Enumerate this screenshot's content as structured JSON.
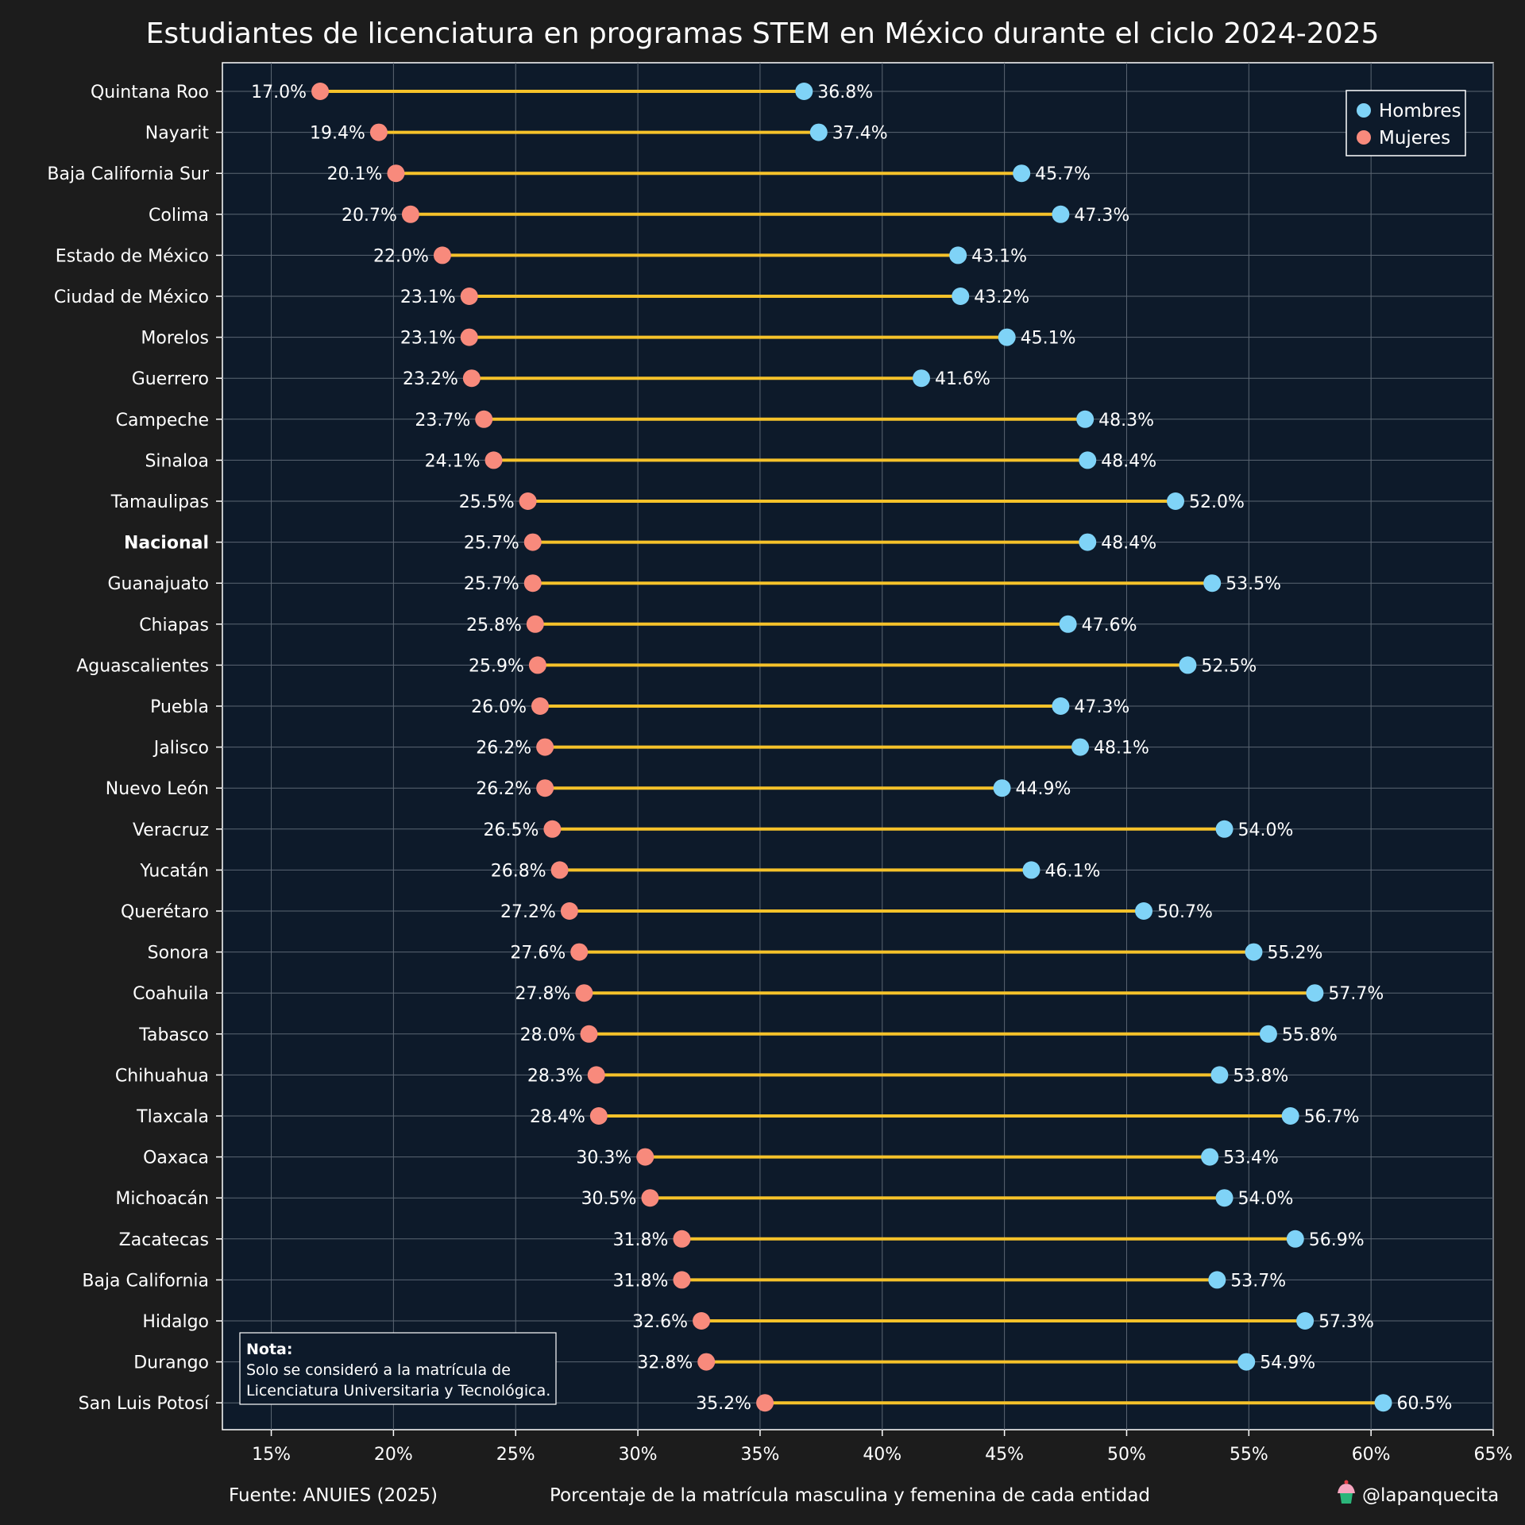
{
  "colors": {
    "background": "#1c1c1c",
    "plot_background": "#0d1a2a",
    "grid": "#5b6673",
    "connector": "#f5c22a",
    "hombres": "#7fd3f7",
    "mujeres": "#f88a7c"
  },
  "footer": {
    "source": "Fuente: ANUIES (2025)",
    "handle": "@lapanquecita",
    "handle_icon": "cupcake-icon"
  },
  "note": {
    "title": "Nota:",
    "line1": "Solo se consideró a la matrícula de",
    "line2": "Licenciatura Universitaria y Tecnológica."
  },
  "chart_data": {
    "type": "dumbbell",
    "title": "Estudiantes de licenciatura en programas STEM en México durante el ciclo 2024-2025",
    "xlabel": "Porcentaje de la matrícula masculina y femenina de cada entidad",
    "ylabel": "",
    "xlim": [
      13,
      65
    ],
    "x_ticks": [
      15,
      20,
      25,
      30,
      35,
      40,
      45,
      50,
      55,
      60,
      65
    ],
    "x_tick_labels": [
      "15%",
      "20%",
      "25%",
      "30%",
      "35%",
      "40%",
      "45%",
      "50%",
      "55%",
      "60%",
      "65%"
    ],
    "grid": true,
    "legend_position": "top-right",
    "categories": [
      "Quintana Roo",
      "Nayarit",
      "Baja California Sur",
      "Colima",
      "Estado de México",
      "Ciudad de México",
      "Morelos",
      "Guerrero",
      "Campeche",
      "Sinaloa",
      "Tamaulipas",
      "Nacional",
      "Guanajuato",
      "Chiapas",
      "Aguascalientes",
      "Puebla",
      "Jalisco",
      "Nuevo León",
      "Veracruz",
      "Yucatán",
      "Querétaro",
      "Sonora",
      "Coahuila",
      "Tabasco",
      "Chihuahua",
      "Tlaxcala",
      "Oaxaca",
      "Michoacán",
      "Zacatecas",
      "Baja California",
      "Hidalgo",
      "Durango",
      "San Luis Potosí"
    ],
    "highlight_category": "Nacional",
    "series": [
      {
        "name": "Hombres",
        "values": [
          36.8,
          37.4,
          45.7,
          47.3,
          43.1,
          43.2,
          45.1,
          41.6,
          48.3,
          48.4,
          52.0,
          48.4,
          53.5,
          47.6,
          52.5,
          47.3,
          48.1,
          44.9,
          54.0,
          46.1,
          50.7,
          55.2,
          57.7,
          55.8,
          53.8,
          56.7,
          53.4,
          54.0,
          56.9,
          53.7,
          57.3,
          54.9,
          60.5
        ],
        "labels": [
          "36.8%",
          "37.4%",
          "45.7%",
          "47.3%",
          "43.1%",
          "43.2%",
          "45.1%",
          "41.6%",
          "48.3%",
          "48.4%",
          "52.0%",
          "48.4%",
          "53.5%",
          "47.6%",
          "52.5%",
          "47.3%",
          "48.1%",
          "44.9%",
          "54.0%",
          "46.1%",
          "50.7%",
          "55.2%",
          "57.7%",
          "55.8%",
          "53.8%",
          "56.7%",
          "53.4%",
          "54.0%",
          "56.9%",
          "53.7%",
          "57.3%",
          "54.9%",
          "60.5%"
        ]
      },
      {
        "name": "Mujeres",
        "values": [
          17.0,
          19.4,
          20.1,
          20.7,
          22.0,
          23.1,
          23.1,
          23.2,
          23.7,
          24.1,
          25.5,
          25.7,
          25.7,
          25.8,
          25.9,
          26.0,
          26.2,
          26.2,
          26.5,
          26.8,
          27.2,
          27.6,
          27.8,
          28.0,
          28.3,
          28.4,
          30.3,
          30.5,
          31.8,
          31.8,
          32.6,
          32.8,
          35.2
        ],
        "labels": [
          "17.0%",
          "19.4%",
          "20.1%",
          "20.7%",
          "22.0%",
          "23.1%",
          "23.1%",
          "23.2%",
          "23.7%",
          "24.1%",
          "25.5%",
          "25.7%",
          "25.7%",
          "25.8%",
          "25.9%",
          "26.0%",
          "26.2%",
          "26.2%",
          "26.5%",
          "26.8%",
          "27.2%",
          "27.6%",
          "27.8%",
          "28.0%",
          "28.3%",
          "28.4%",
          "30.3%",
          "30.5%",
          "31.8%",
          "31.8%",
          "32.6%",
          "32.8%",
          "35.2%"
        ]
      }
    ]
  }
}
